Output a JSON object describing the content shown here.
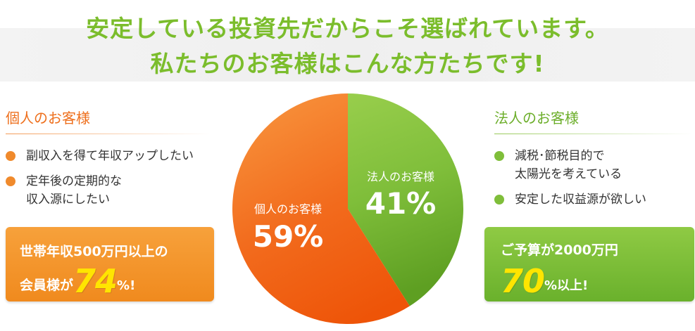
{
  "headline": {
    "line1": "安定している投資先だからこそ選ばれています。",
    "line2": "私たちのお客様はこんな方たちです!"
  },
  "individual": {
    "title": "個人のお客様",
    "bullets": [
      "副収入を得て年収アップしたい",
      "定年後の定期的な\n収入源にしたい"
    ],
    "highlight": {
      "line1": "世帯年収500万円以上の",
      "prefix": "会員様が",
      "number": "74",
      "suffix": "%!"
    }
  },
  "corporate": {
    "title": "法人のお客様",
    "bullets": [
      "減税･節税目的で\n太陽光を考えている",
      "安定した収益源が欲しい"
    ],
    "highlight": {
      "line1": "ご予算が2000万円",
      "number": "70",
      "suffix": "%以上!"
    }
  },
  "chart_data": {
    "type": "pie",
    "title": "",
    "slices": [
      {
        "label": "法人のお客様",
        "value": 41,
        "display": "41%",
        "color": "#7fbe3a",
        "color_light": "#98ce4c",
        "color_dark": "#5e9f22"
      },
      {
        "label": "個人のお客様",
        "value": 59,
        "display": "59%",
        "color": "#f26b1d",
        "color_light": "#f7903a",
        "color_dark": "#ee5408"
      }
    ],
    "start": "12 o'clock",
    "direction": "clockwise"
  },
  "colors": {
    "headline": "#7bbd2c",
    "orange_accent": "#ee6f1c",
    "green_accent": "#6cae2a",
    "highlight_number": "#ffe500"
  }
}
